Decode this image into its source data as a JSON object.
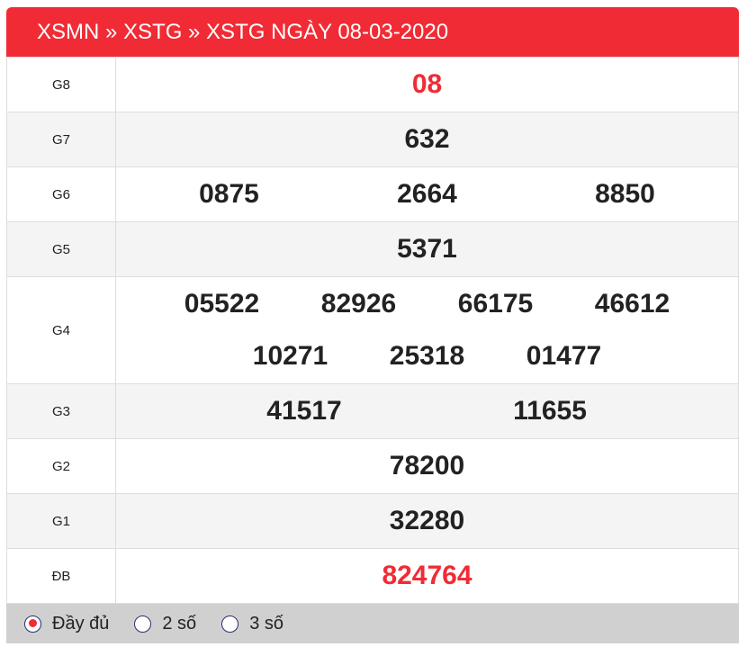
{
  "header": {
    "title": "XSMN » XSTG » XSTG NGÀY 08-03-2020"
  },
  "rows": [
    {
      "label": "G8",
      "numbers": [
        "08"
      ]
    },
    {
      "label": "G7",
      "numbers": [
        "632"
      ]
    },
    {
      "label": "G6",
      "numbers": [
        "0875",
        "2664",
        "8850"
      ]
    },
    {
      "label": "G5",
      "numbers": [
        "5371"
      ]
    },
    {
      "label": "G4",
      "numbers": [
        "05522",
        "82926",
        "66175",
        "46612",
        "10271",
        "25318",
        "01477"
      ]
    },
    {
      "label": "G3",
      "numbers": [
        "41517",
        "11655"
      ]
    },
    {
      "label": "G2",
      "numbers": [
        "78200"
      ]
    },
    {
      "label": "G1",
      "numbers": [
        "32280"
      ]
    },
    {
      "label": "ĐB",
      "numbers": [
        "824764"
      ]
    }
  ],
  "footer": {
    "options": [
      {
        "label": "Đầy đủ",
        "selected": true
      },
      {
        "label": "2 số",
        "selected": false
      },
      {
        "label": "3 số",
        "selected": false
      }
    ]
  },
  "colors": {
    "accent": "#f12b35"
  }
}
